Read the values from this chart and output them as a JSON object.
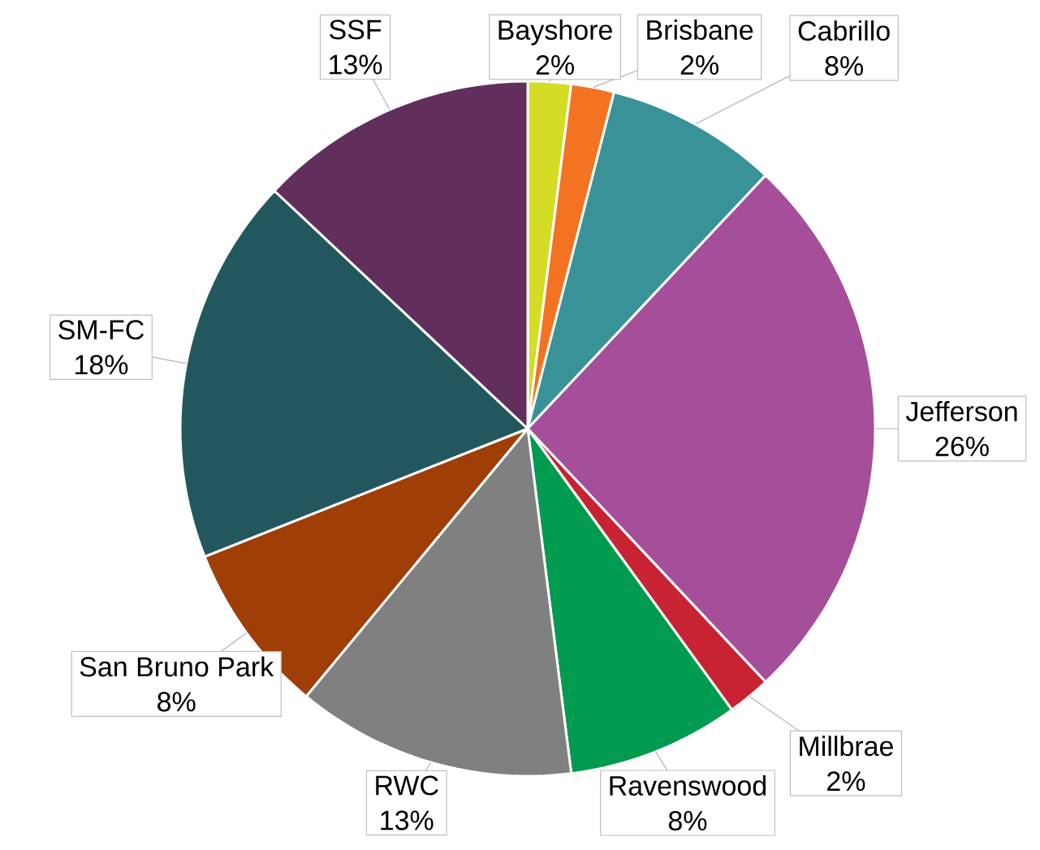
{
  "chart_data": {
    "type": "pie",
    "categories": [
      "Bayshore",
      "Brisbane",
      "Cabrillo",
      "Jefferson",
      "Millbrae",
      "Ravenswood",
      "RWC",
      "San Bruno Park",
      "SM-FC",
      "SSF"
    ],
    "values": [
      2,
      2,
      8,
      26,
      2,
      8,
      13,
      8,
      18,
      13
    ],
    "value_labels": [
      "2%",
      "2%",
      "8%",
      "26%",
      "2%",
      "8%",
      "13%",
      "8%",
      "18%",
      "13%"
    ],
    "colors": [
      "#d4dc26",
      "#f47322",
      "#3a9299",
      "#a54f9b",
      "#c82333",
      "#009b4e",
      "#808080",
      "#9f3e07",
      "#22585d",
      "#622f5d"
    ]
  }
}
